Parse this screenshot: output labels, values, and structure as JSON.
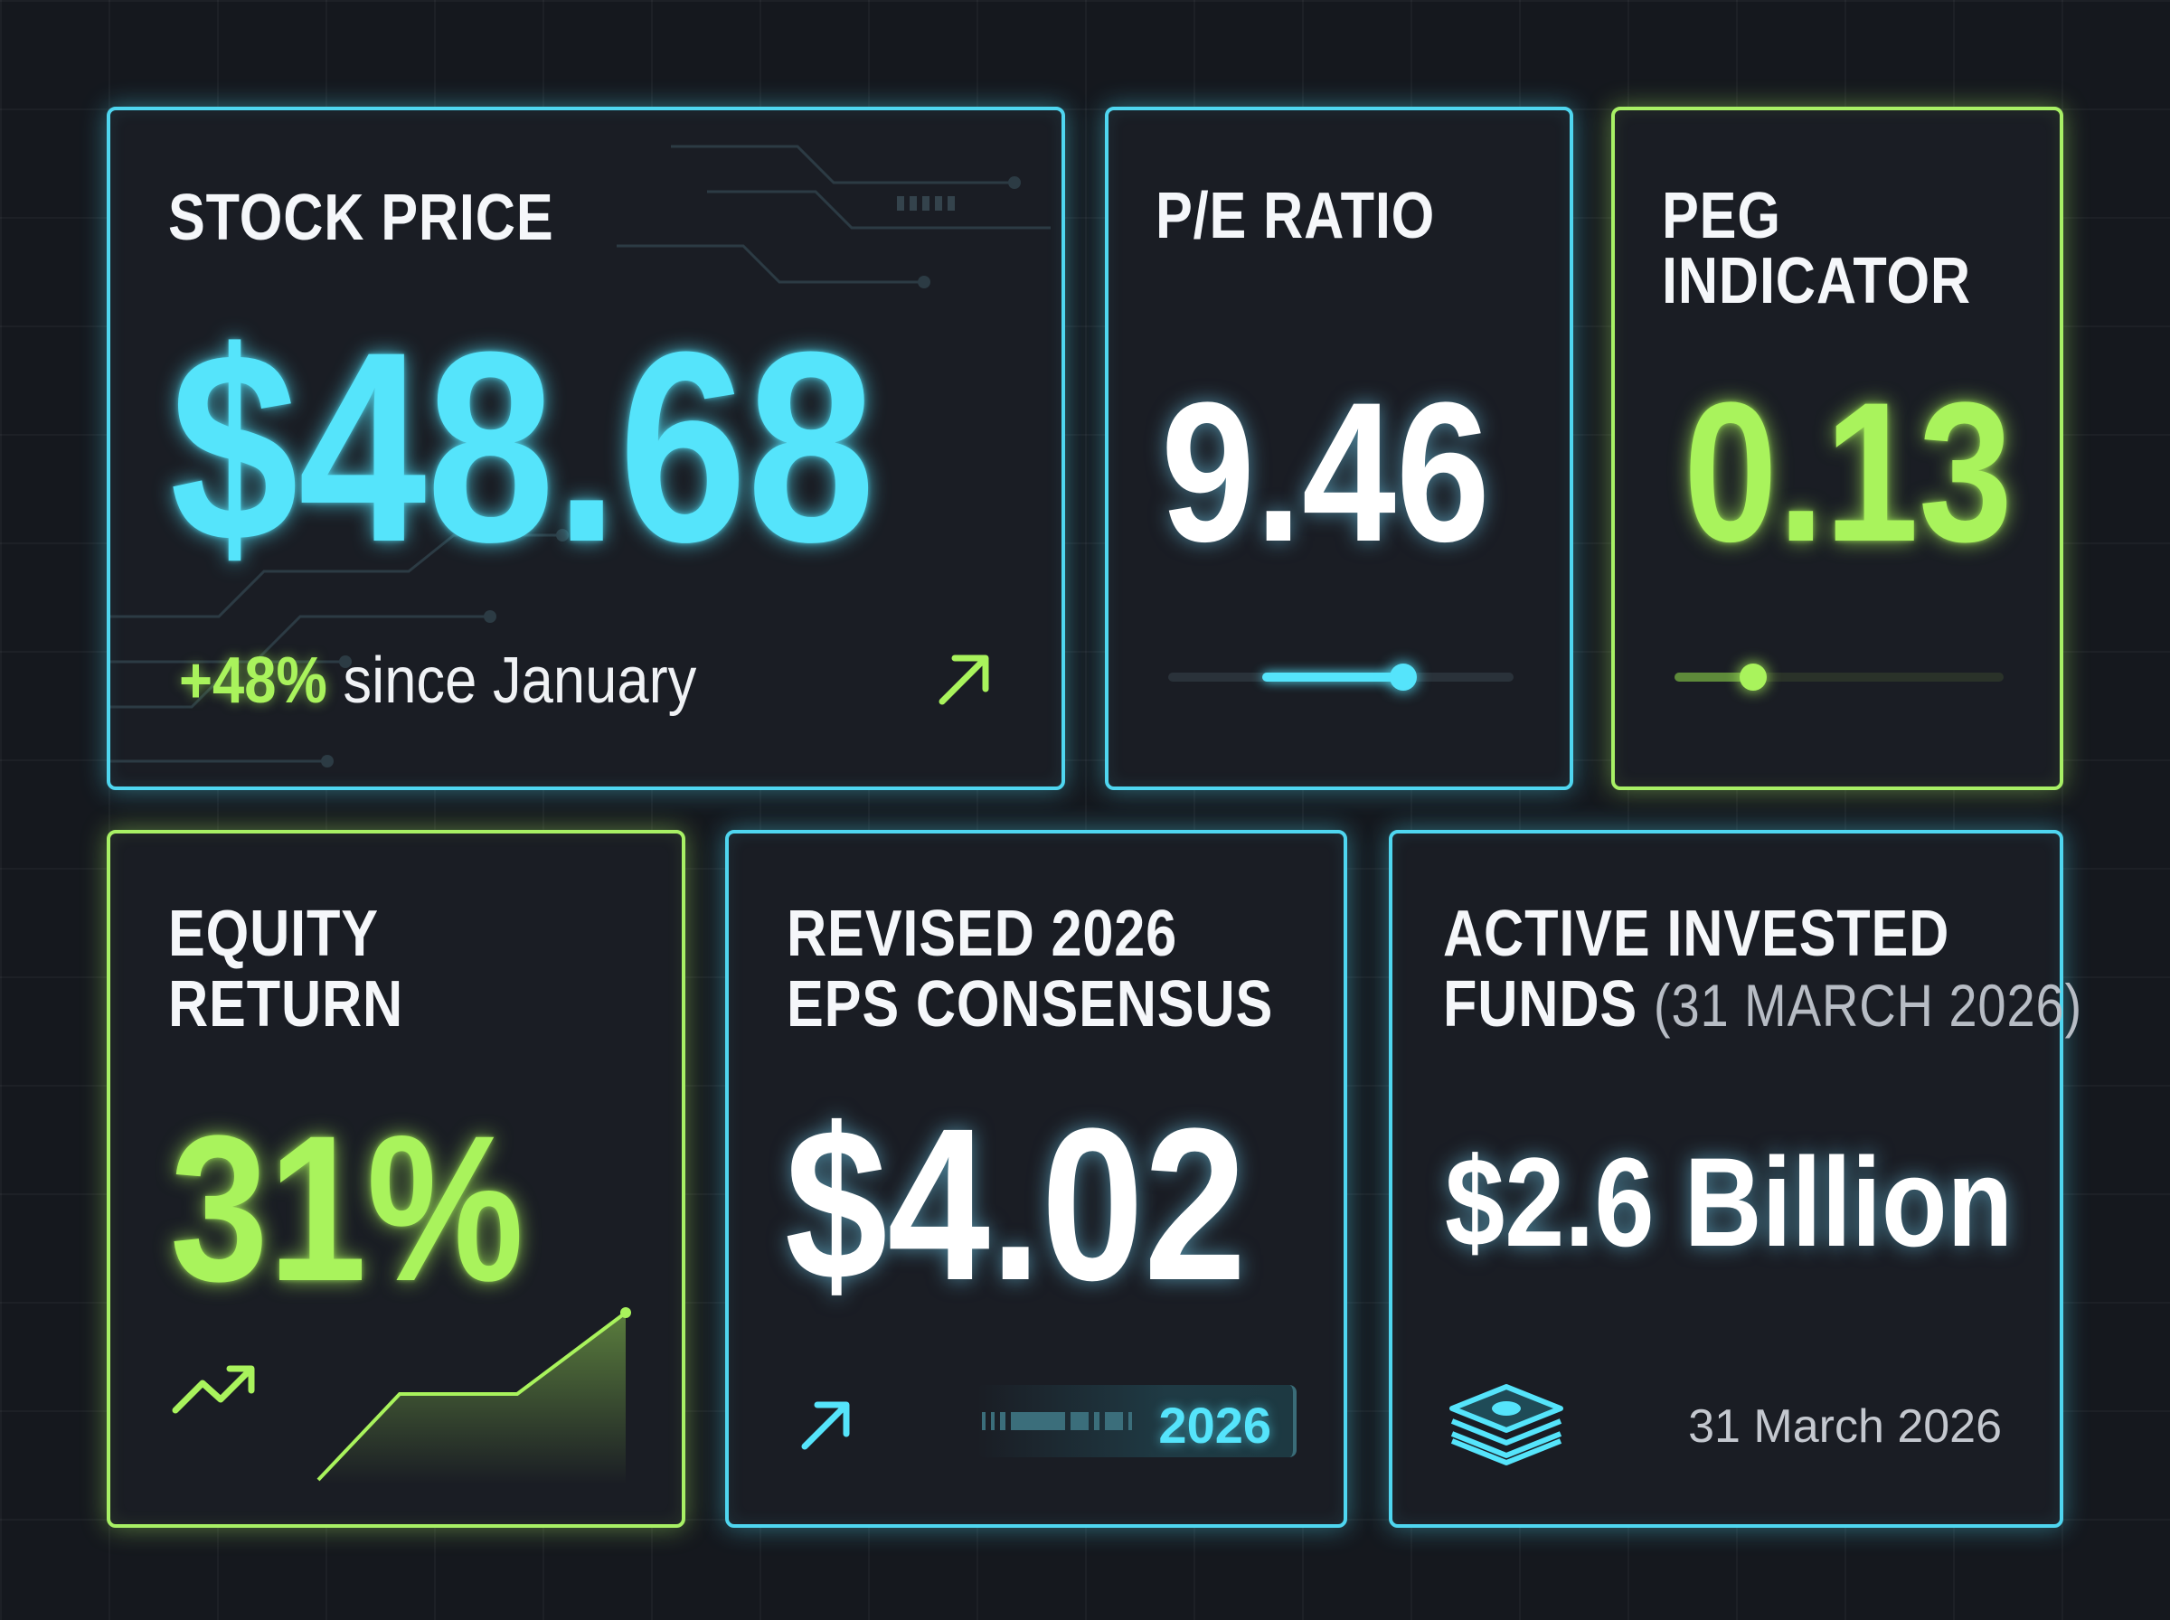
{
  "colors": {
    "cyan": "#4fd6f0",
    "lime": "#a8f065",
    "background": "#15181e",
    "card_background": "#1a1d24"
  },
  "stock_price": {
    "title": "STOCK PRICE",
    "value": "$48.68",
    "change": "+48%",
    "change_label": "since January",
    "icon": "arrow-up-right-icon"
  },
  "pe_ratio": {
    "title": "P/E RATIO",
    "value": "9.46",
    "slider_level": 0.68
  },
  "peg": {
    "title_line1": "PEG",
    "title_line2": "INDICATOR",
    "value": "0.13",
    "slider_level": 0.24
  },
  "equity": {
    "title_line1": "EQUITY",
    "title_line2": "RETURN",
    "value": "31%",
    "icon": "trend-up-icon"
  },
  "eps": {
    "title_line1": "REVISED 2026",
    "title_line2": "EPS CONSENSUS",
    "value": "$4.02",
    "badge": "2026",
    "icon": "arrow-up-right-icon"
  },
  "funds": {
    "title_line1": "ACTIVE INVESTED",
    "title_line2": "FUNDS",
    "title_date": "(31 MARCH 2026)",
    "value": "$2.6 Billion",
    "date": "31 March 2026",
    "icon": "money-stack-icon"
  }
}
